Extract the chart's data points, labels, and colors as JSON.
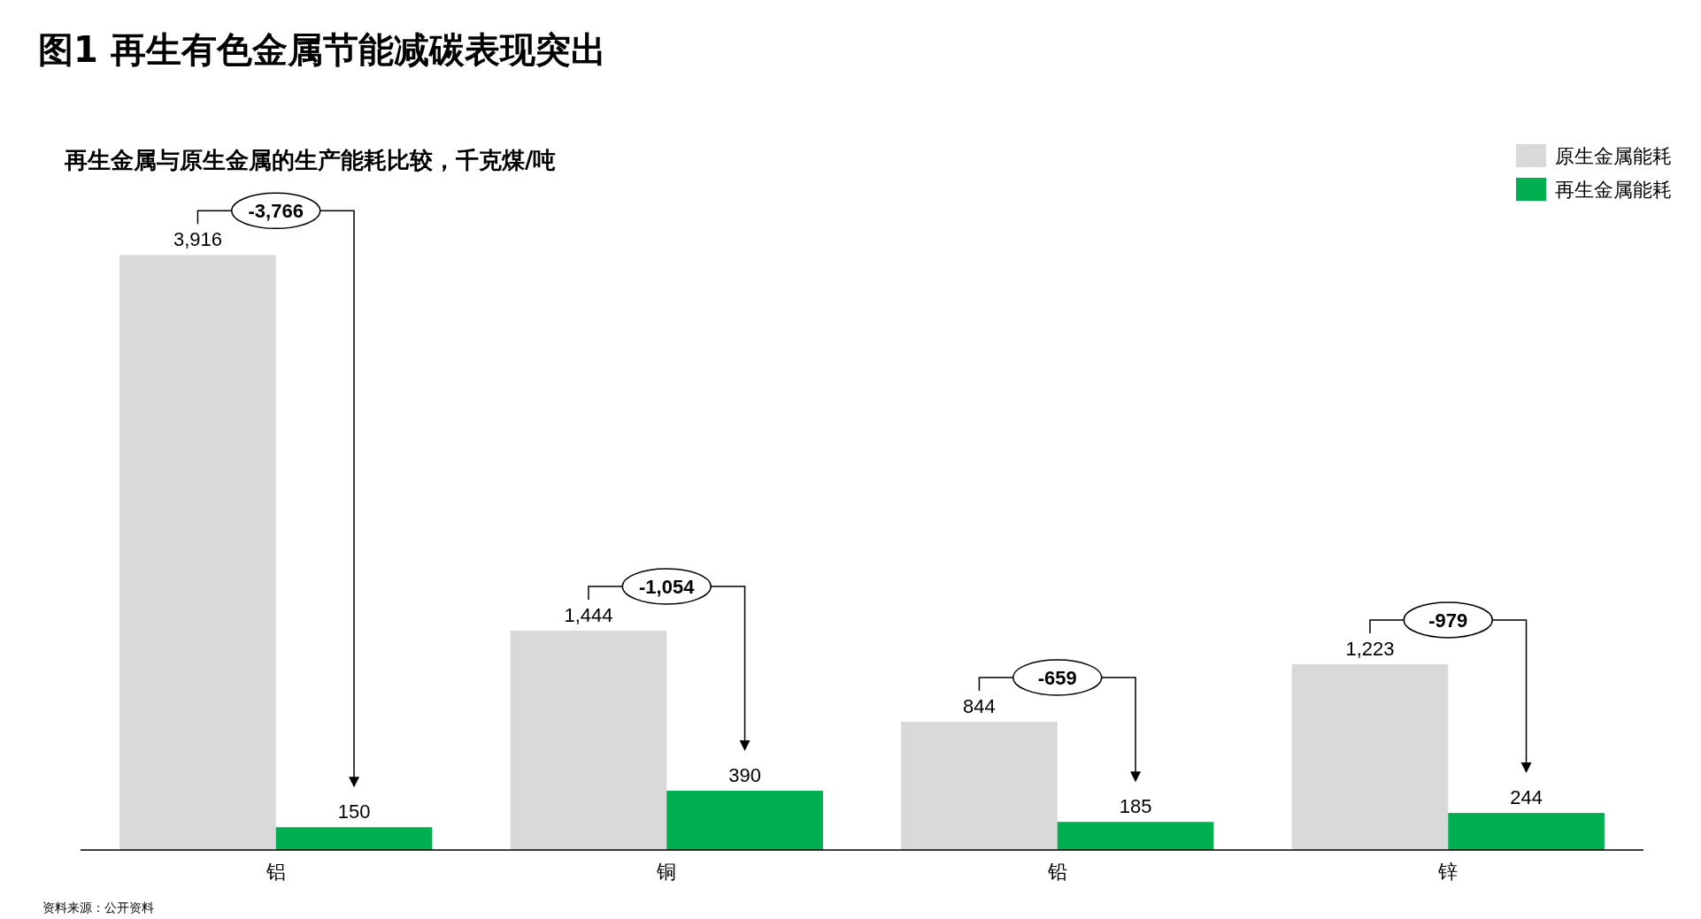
{
  "chart_data": {
    "type": "bar",
    "title": "图1  再生有色金属节能减碳表现突出",
    "subtitle": "再生金属与原生金属的生产能耗比较，千克煤/吨",
    "categories": [
      "铝",
      "铜",
      "铅",
      "锌"
    ],
    "series": [
      {
        "name": "原生金属能耗",
        "color": "#d9d9d9",
        "values": [
          3916,
          1444,
          844,
          1223
        ],
        "value_labels": [
          "3,916",
          "1,444",
          "844",
          "1,223"
        ]
      },
      {
        "name": "再生金属能耗",
        "color": "#00b050",
        "values": [
          150,
          390,
          185,
          244
        ],
        "value_labels": [
          "150",
          "390",
          "185",
          "244"
        ]
      }
    ],
    "legend": "top right",
    "annotations": [
      {
        "text": "-3,766",
        "x": "铝",
        "y": 3916
      },
      {
        "text": "-1,054",
        "x": "铜",
        "y": 1444
      },
      {
        "text": "-659",
        "x": "铅",
        "y": 844
      },
      {
        "text": "-979",
        "x": "锌",
        "y": 1223
      },
      "资料来源：公开资料"
    ]
  }
}
